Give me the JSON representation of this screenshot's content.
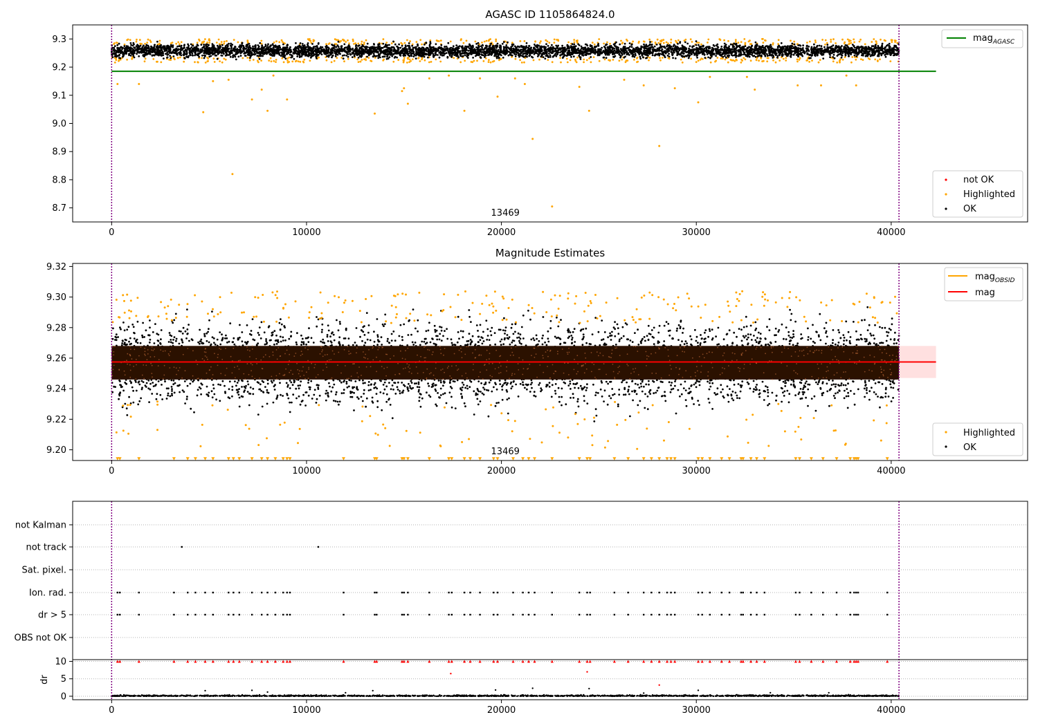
{
  "chart_data": [
    {
      "type": "scatter",
      "title": "AGASC ID 1105864824.0",
      "xlim": [
        -2000,
        47000
      ],
      "ylim": [
        8.65,
        9.35
      ],
      "xticks": [
        0,
        10000,
        20000,
        30000,
        40000
      ],
      "yticks": [
        8.7,
        8.8,
        8.9,
        9.0,
        9.1,
        9.2,
        9.3
      ],
      "ytick_labels": [
        "8.7",
        "8.8",
        "8.9",
        "9.0",
        "9.1",
        "9.2",
        "9.3"
      ],
      "xtick_labels": [
        "0",
        "10000",
        "20000",
        "30000",
        "40000"
      ],
      "reference_line": {
        "y": 9.185,
        "x_range": [
          0,
          42300
        ],
        "label_main": "mag",
        "label_sub": "AGASC",
        "color": "#008000"
      },
      "vlines": [
        {
          "x": 0,
          "color": "#800080"
        },
        {
          "x": 40400,
          "color": "#800080"
        }
      ],
      "obsid_label": {
        "text": "13469",
        "x": 20200
      },
      "legend_line_position": "upper right",
      "legend_points_position": "lower right",
      "legend_points": [
        {
          "label": "not OK",
          "color": "#ff0000"
        },
        {
          "label": "Highlighted",
          "color": "#ffa500"
        },
        {
          "label": "OK",
          "color": "#000000"
        }
      ],
      "series": [
        {
          "name": "OK",
          "band": {
            "center": 9.258,
            "spread": 0.02
          },
          "x_range": [
            0,
            40400
          ]
        },
        {
          "name": "Highlighted",
          "outliers": [
            [
              300,
              9.14
            ],
            [
              1400,
              9.14
            ],
            [
              4700,
              9.04
            ],
            [
              5200,
              9.15
            ],
            [
              6000,
              9.155
            ],
            [
              6200,
              8.82
            ],
            [
              7200,
              9.085
            ],
            [
              7700,
              9.12
            ],
            [
              8000,
              9.045
            ],
            [
              8300,
              9.17
            ],
            [
              9000,
              9.085
            ],
            [
              13500,
              9.035
            ],
            [
              14900,
              9.115
            ],
            [
              15000,
              9.125
            ],
            [
              15200,
              9.07
            ],
            [
              16300,
              9.16
            ],
            [
              17300,
              9.17
            ],
            [
              18100,
              9.045
            ],
            [
              18900,
              9.16
            ],
            [
              19800,
              9.095
            ],
            [
              20700,
              9.16
            ],
            [
              21200,
              9.14
            ],
            [
              21600,
              8.945
            ],
            [
              22600,
              8.705
            ],
            [
              24000,
              9.13
            ],
            [
              24500,
              9.045
            ],
            [
              26300,
              9.155
            ],
            [
              27300,
              9.135
            ],
            [
              28100,
              8.92
            ],
            [
              28900,
              9.125
            ],
            [
              30100,
              9.075
            ],
            [
              30700,
              9.165
            ],
            [
              32600,
              9.165
            ],
            [
              33000,
              9.12
            ],
            [
              35200,
              9.135
            ],
            [
              36400,
              9.135
            ],
            [
              37700,
              9.17
            ],
            [
              38200,
              9.135
            ]
          ]
        }
      ]
    },
    {
      "type": "scatter",
      "title": "Magnitude Estimates",
      "xlim": [
        -2000,
        47000
      ],
      "ylim": [
        9.193,
        9.322
      ],
      "xticks": [
        0,
        10000,
        20000,
        30000,
        40000
      ],
      "yticks": [
        9.2,
        9.22,
        9.24,
        9.26,
        9.28,
        9.3,
        9.32
      ],
      "ytick_labels": [
        "9.20",
        "9.22",
        "9.24",
        "9.26",
        "9.28",
        "9.30",
        "9.32"
      ],
      "xtick_labels": [
        "0",
        "10000",
        "20000",
        "30000",
        "40000"
      ],
      "mag_line": {
        "y": 9.2575,
        "band": [
          9.247,
          9.268
        ],
        "x_range": [
          0,
          42300
        ],
        "color": "#ff0000"
      },
      "vlines": [
        {
          "x": 0,
          "color": "#800080"
        },
        {
          "x": 40400,
          "color": "#800080"
        }
      ],
      "obsid_label": {
        "text": "13469",
        "x": 20200
      },
      "legend_line_position": "upper right",
      "legend_points_position": "lower right",
      "legend_lines": [
        {
          "label_main": "mag",
          "label_sub": "OBSID",
          "color": "#ffa500"
        },
        {
          "label_main": "mag",
          "label_sub": "",
          "color": "#ff0000"
        }
      ],
      "legend_points": [
        {
          "label": "Highlighted",
          "color": "#ffa500"
        },
        {
          "label": "OK",
          "color": "#000000"
        }
      ],
      "series": [
        {
          "name": "OK",
          "band": {
            "center": 9.257,
            "core": 0.011,
            "spread": 0.028
          },
          "x_range": [
            0,
            40400
          ]
        },
        {
          "name": "Highlighted",
          "high_range": [
            9.283,
            9.304
          ],
          "low_range": [
            9.2,
            9.232
          ],
          "below_axis_marker_y": 9.194
        }
      ]
    },
    {
      "type": "scatter",
      "title": "",
      "xlim": [
        -2000,
        47000
      ],
      "xticks": [
        0,
        10000,
        20000,
        30000,
        40000
      ],
      "xtick_labels": [
        "0",
        "10000",
        "20000",
        "30000",
        "40000"
      ],
      "flag_rows": [
        "not Kalman",
        "not track",
        "Sat. pixel.",
        "Ion. rad.",
        "dr > 5",
        "OBS not OK"
      ],
      "flag_points": {
        "not track": [
          3600,
          10600
        ],
        "Ion. rad.": [
          300,
          420,
          1400,
          3200,
          3900,
          4300,
          4800,
          5200,
          6000,
          6250,
          6550,
          7200,
          7700,
          8000,
          8400,
          8800,
          9000,
          9150,
          11900,
          13500,
          13600,
          14900,
          15000,
          15200,
          16300,
          17300,
          17450,
          18100,
          18400,
          18900,
          19600,
          19800,
          20600,
          21100,
          21400,
          21700,
          22600,
          24000,
          24400,
          24550,
          25800,
          26500,
          27300,
          27700,
          28100,
          28500,
          28700,
          28900,
          30100,
          30300,
          30700,
          31300,
          31700,
          32300,
          32400,
          32800,
          33100,
          33500,
          35100,
          35300,
          35900,
          36500,
          37200,
          37900,
          38100,
          38200,
          38300,
          39800
        ],
        "dr > 5": [
          300,
          420,
          1400,
          3200,
          3900,
          4300,
          4800,
          5200,
          6000,
          6250,
          6550,
          7200,
          7700,
          8000,
          8400,
          8800,
          9000,
          9150,
          11900,
          13500,
          13600,
          14900,
          15000,
          15200,
          16300,
          17300,
          17450,
          18100,
          18400,
          18900,
          19600,
          19800,
          20600,
          21100,
          21400,
          21700,
          22600,
          24000,
          24400,
          24550,
          25800,
          26500,
          27300,
          27700,
          28100,
          28500,
          28700,
          28900,
          30100,
          30300,
          30700,
          31300,
          31700,
          32300,
          32400,
          32800,
          33100,
          33500,
          35100,
          35300,
          35900,
          36500,
          37200,
          37900,
          38100,
          38200,
          38300,
          39800
        ]
      },
      "dr_axis": {
        "ylabel": "dr",
        "yticks": [
          0,
          5,
          10
        ],
        "ytick_labels": [
          "0",
          "5",
          "10"
        ],
        "ylim": [
          -1,
          10.5
        ]
      },
      "dr_outliers_red": [
        [
          17400,
          6.5
        ],
        [
          24400,
          7.0
        ],
        [
          28100,
          3.2
        ]
      ],
      "dr_scatter_black": [
        [
          4800,
          1.6
        ],
        [
          7200,
          1.7
        ],
        [
          8000,
          1.2
        ],
        [
          13400,
          1.6
        ],
        [
          19700,
          1.8
        ],
        [
          21600,
          2.3
        ],
        [
          24500,
          2.2
        ],
        [
          30100,
          1.7
        ],
        [
          33800,
          1.0
        ],
        [
          36800,
          1.0
        ],
        [
          12000,
          1.0
        ],
        [
          27300,
          0.9
        ]
      ]
    }
  ]
}
